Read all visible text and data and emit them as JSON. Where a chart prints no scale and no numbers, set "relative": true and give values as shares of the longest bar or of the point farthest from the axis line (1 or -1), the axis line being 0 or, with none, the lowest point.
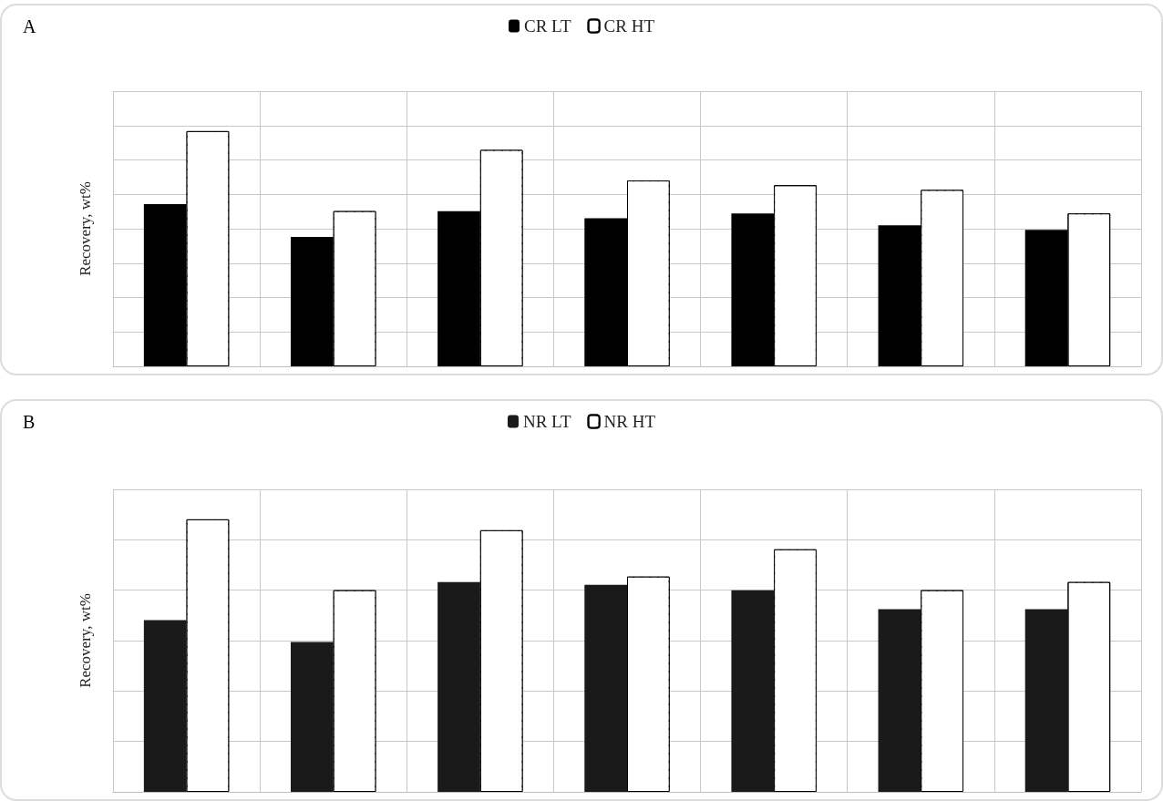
{
  "chart_data": [
    {
      "type": "bar",
      "title": "A",
      "ylabel": "Recovery, wt%",
      "relative": true,
      "grid": true,
      "legend": "top",
      "categories": [
        null,
        null,
        null,
        null,
        null,
        null,
        null
      ],
      "series": [
        {
          "name": "CR LT",
          "color": "#000000",
          "values": [
            0.69,
            0.55,
            0.66,
            0.63,
            0.65,
            0.6,
            0.58
          ]
        },
        {
          "name": "CR HT",
          "color": "#ffffff",
          "values": [
            1,
            0.66,
            0.92,
            0.79,
            0.77,
            0.75,
            0.65
          ]
        }
      ]
    },
    {
      "type": "bar",
      "title": "B",
      "ylabel": "Recovery, wt%",
      "relative": true,
      "grid": true,
      "legend": "top",
      "categories": [
        null,
        null,
        null,
        null,
        null,
        null,
        null
      ],
      "series": [
        {
          "name": "NR LT",
          "color": "#1a1a1a",
          "values": [
            0.63,
            0.55,
            0.77,
            0.76,
            0.74,
            0.67,
            0.67
          ]
        },
        {
          "name": "NR HT",
          "color": "#ffffff",
          "values": [
            1,
            0.74,
            0.96,
            0.79,
            0.89,
            0.74,
            0.77
          ]
        }
      ]
    }
  ]
}
